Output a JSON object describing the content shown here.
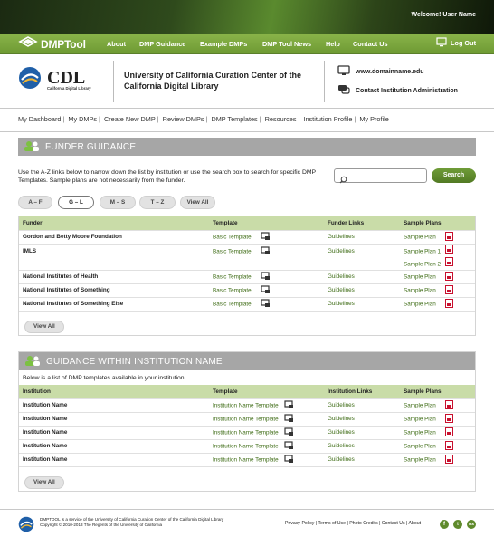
{
  "topbar": {
    "welcome": "Welcome! User Name"
  },
  "nav": {
    "brand": "DMPTool",
    "items": [
      "About",
      "DMP Guidance",
      "Example DMPs",
      "DMP Tool News",
      "Help",
      "Contact Us"
    ],
    "logout": "Log Out"
  },
  "header": {
    "logo_main": "CDL",
    "logo_sub": "California Digital Library",
    "title": "University of California Curation Center of the California Digital Library",
    "domain": "www.domainname.edu",
    "contact": "Contact Institution Administration"
  },
  "subnav": [
    "My Dashboard",
    "My DMPs",
    "Create New DMP",
    "Review DMPs",
    "DMP Templates",
    "Resources",
    "Institution Profile",
    "My Profile"
  ],
  "funder": {
    "heading": "FUNDER GUIDANCE",
    "intro": "Use the A-Z links below to narrow down the list by institution or use the search box to search for specific DMP Templates. Sample plans are not necessarily from the funder.",
    "search_placeholder": "",
    "search_button": "Search",
    "filters": [
      "A – F",
      "G – L",
      "M – S",
      "T – Z",
      "View All"
    ],
    "active_filter": "G – L",
    "columns": [
      "Funder",
      "Template",
      "Funder Links",
      "Sample Plans"
    ],
    "rows": [
      {
        "funder": "Gordon and Betty Moore Foundation",
        "template": "Basic Template",
        "link": "Guidelines",
        "plans": [
          "Sample Plan"
        ]
      },
      {
        "funder": "IMLS",
        "template": "Basic Template",
        "link": "Guidelines",
        "plans": [
          "Sample Plan 1",
          "Sample Plan 2"
        ]
      },
      {
        "funder": "National Institutes of Health",
        "template": "Basic Template",
        "link": "Guidelines",
        "plans": [
          "Sample Plan"
        ]
      },
      {
        "funder": "National Institutes of Something",
        "template": "Basic Template",
        "link": "Guidelines",
        "plans": [
          "Sample Plan"
        ]
      },
      {
        "funder": "National Institutes of Something Else",
        "template": "Basic Template",
        "link": "Guidelines",
        "plans": [
          "Sample Plan"
        ]
      }
    ],
    "view_all": "View All"
  },
  "institution": {
    "heading": "GUIDANCE WITHIN INSTITUTION NAME",
    "intro": "Below is a list of DMP templates available in your institution.",
    "columns": [
      "Institution",
      "Template",
      "Institution Links",
      "Sample Plans"
    ],
    "rows": [
      {
        "name": "Institution Name",
        "template": "Institution Name Template",
        "link": "Guidelines",
        "plan": "Sample Plan"
      },
      {
        "name": "Institution Name",
        "template": "Institution Name Template",
        "link": "Guidelines",
        "plan": "Sample Plan"
      },
      {
        "name": "Institution Name",
        "template": "Institution Name Template",
        "link": "Guidelines",
        "plan": "Sample Plan"
      },
      {
        "name": "Institution Name",
        "template": "Institution Name Template",
        "link": "Guidelines",
        "plan": "Sample Plan"
      },
      {
        "name": "Institution Name",
        "template": "Institution Name Template",
        "link": "Guidelines",
        "plan": "Sample Plan"
      }
    ],
    "view_all": "View All"
  },
  "footer": {
    "line1": "DMPTOOL is a service of the University of California Curation Center of the California Digital Library",
    "line2": "Copyright © 2010-2013 The Regents of the University of California",
    "links": [
      "Privacy Policy",
      "Terms of Use",
      "Photo Credits",
      "Contact Us",
      "About"
    ],
    "social": [
      "f",
      "t",
      "rss"
    ]
  },
  "colors": {
    "accent": "#6e9a33",
    "panel_header": "#a6a6a6",
    "table_header": "#c9dca8",
    "link_green": "#3d6b14",
    "pdf_red": "#c8102e"
  }
}
